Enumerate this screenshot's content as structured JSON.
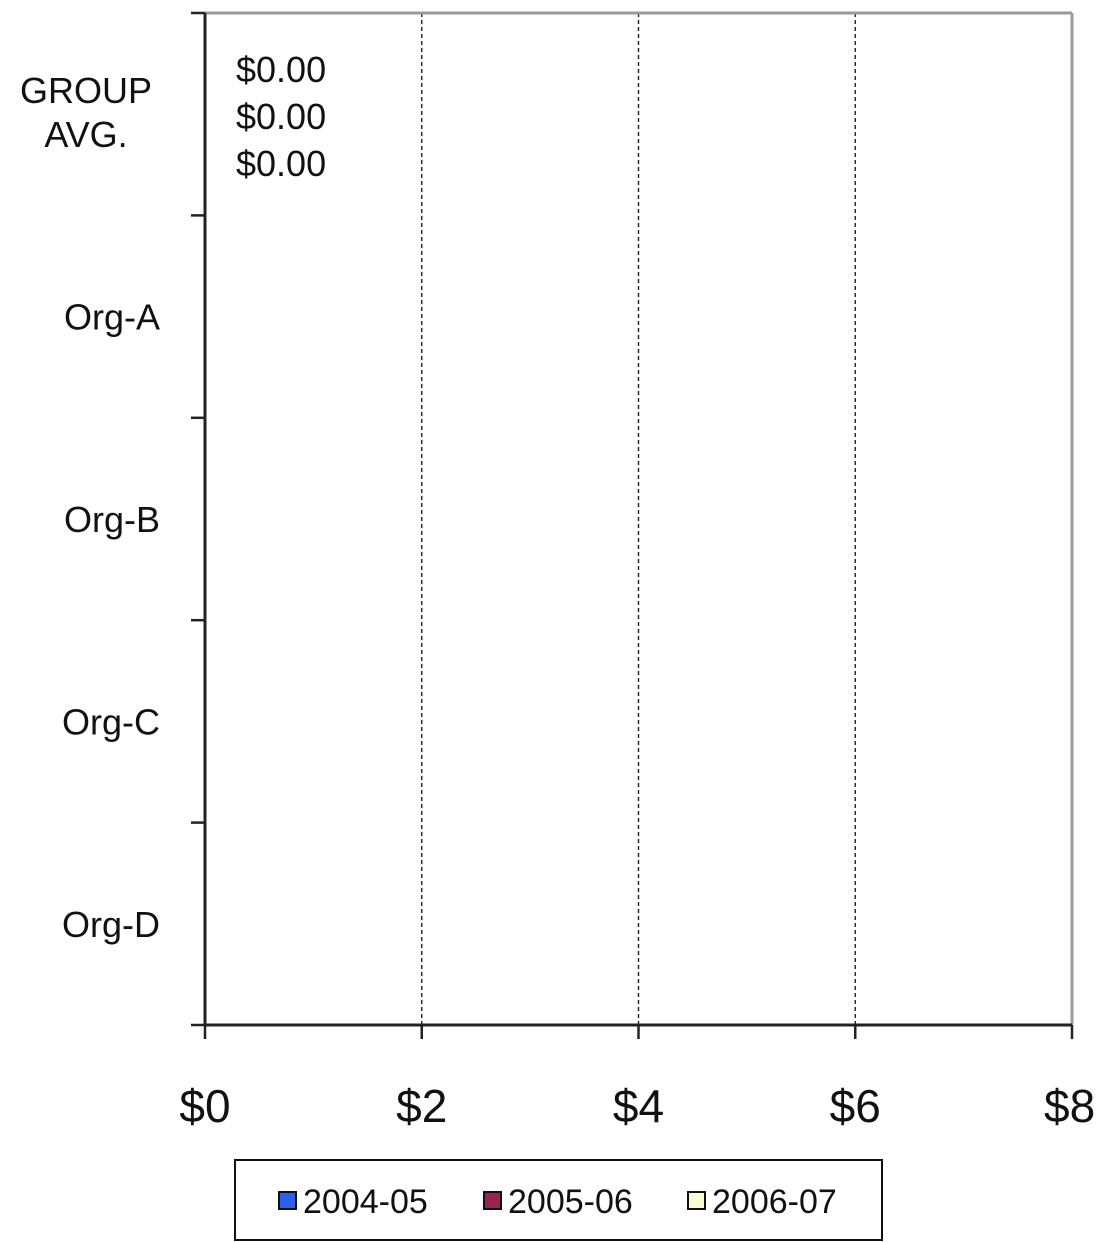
{
  "chart_data": {
    "type": "bar",
    "orientation": "horizontal",
    "categories": [
      "GROUP AVG.",
      "Org-A",
      "Org-B",
      "Org-C",
      "Org-D"
    ],
    "series": [
      {
        "name": "2004-05",
        "color": "#2a5ff0",
        "values": [
          0,
          0,
          0,
          0,
          0
        ]
      },
      {
        "name": "2005-06",
        "color": "#9b2350",
        "values": [
          0,
          0,
          0,
          0,
          0
        ]
      },
      {
        "name": "2006-07",
        "color": "#fbfbd0",
        "values": [
          0,
          0,
          0,
          0,
          0
        ]
      }
    ],
    "data_labels": [
      {
        "category_index": 0,
        "series_index": 0,
        "text": "$0.00"
      },
      {
        "category_index": 0,
        "series_index": 1,
        "text": "$0.00"
      },
      {
        "category_index": 0,
        "series_index": 2,
        "text": "$0.00"
      }
    ],
    "xlim": [
      0,
      8
    ],
    "x_ticks": [
      {
        "value": 0,
        "label": "$0"
      },
      {
        "value": 2,
        "label": "$2"
      },
      {
        "value": 4,
        "label": "$4"
      },
      {
        "value": 6,
        "label": "$6"
      },
      {
        "value": 8,
        "label": "$8"
      }
    ],
    "grid": "vertical dashed",
    "legend_position": "bottom",
    "title": "",
    "xlabel": "",
    "ylabel": ""
  }
}
